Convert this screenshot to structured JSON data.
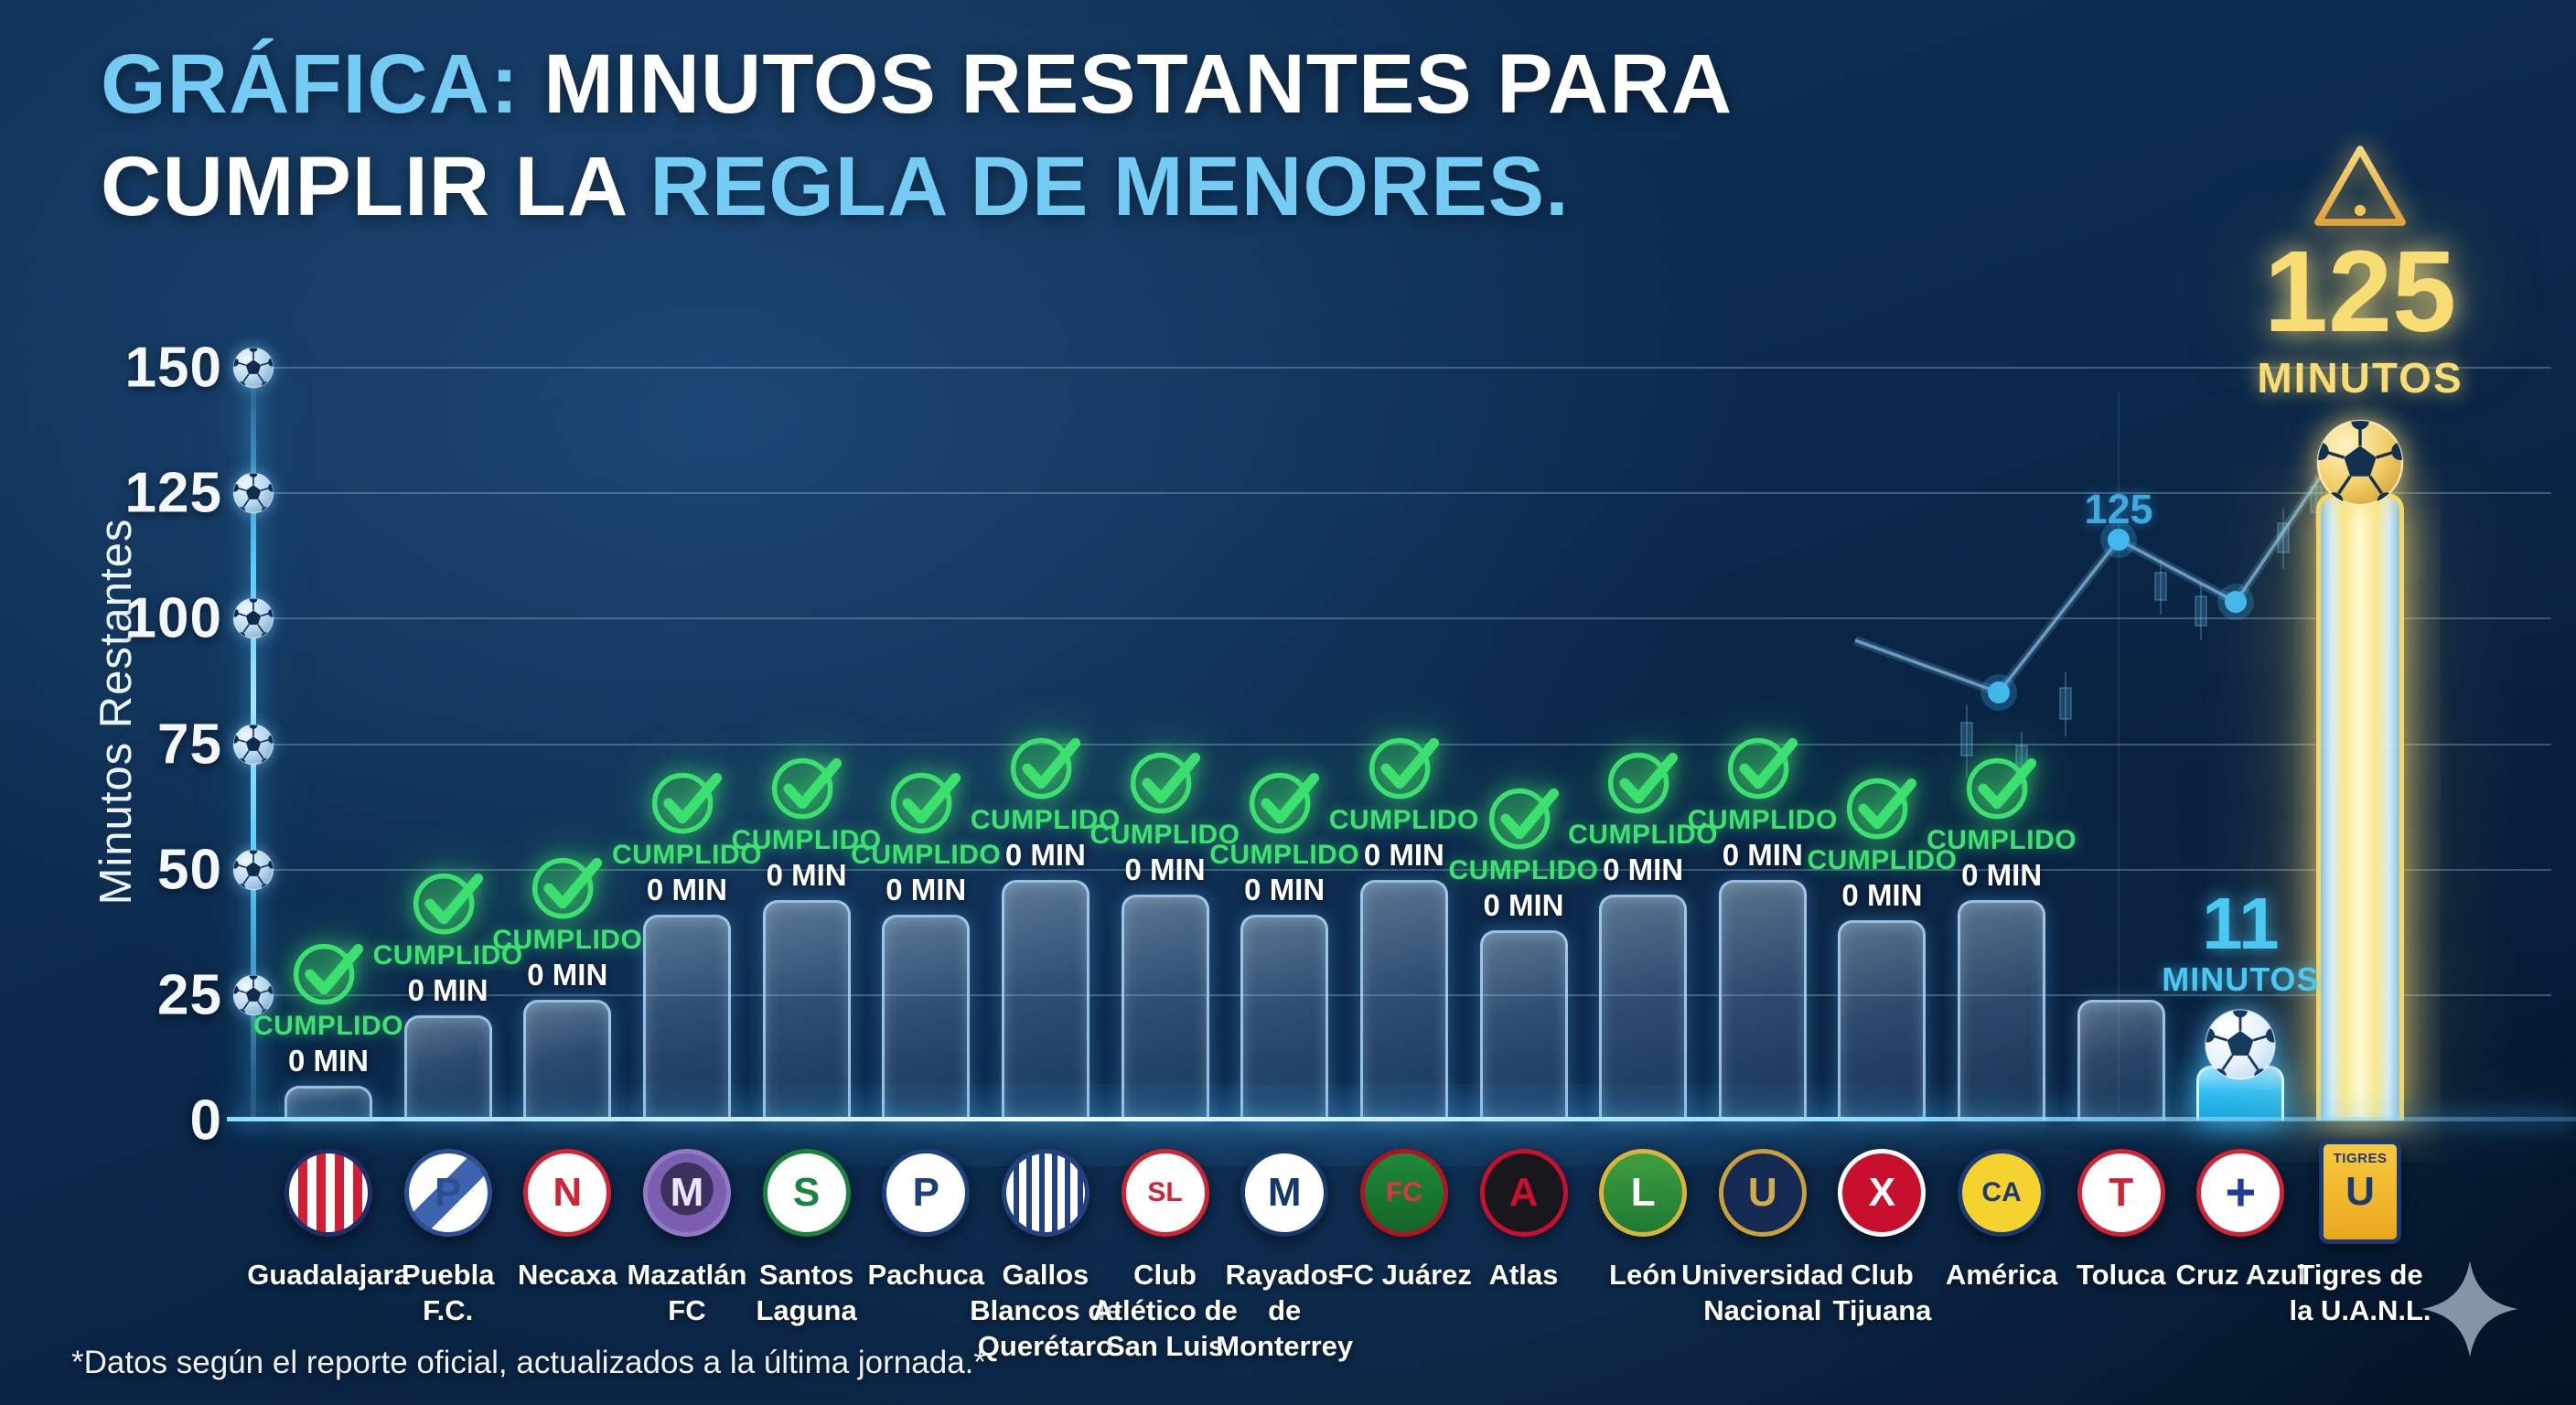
{
  "header": {
    "line1": [
      {
        "text": "GRÁFICA:",
        "accent": true
      },
      {
        "text": " MINUTOS RESTANTES PARA",
        "accent": false
      }
    ],
    "line2": [
      {
        "text": "CUMPLIR LA ",
        "accent": false
      },
      {
        "text": "REGLA DE MENORES.",
        "accent": true
      }
    ]
  },
  "alert": {
    "icon": "warning-triangle-icon",
    "value": "125",
    "unit": "MINUTOS"
  },
  "y_axis": {
    "title": "Minutos Restantes",
    "ticks": [
      150,
      125,
      100,
      75,
      50,
      25,
      0
    ]
  },
  "labels": {
    "cumplido": "CUMPLIDO",
    "zero_min": "0 MIN",
    "minutos": "MINUTOS"
  },
  "background_chart": {
    "peak_label": "125"
  },
  "footer": {
    "note": "*Datos según el reporte oficial, actualizados a la última jornada.*"
  },
  "icons": {
    "check": "check-circle-icon",
    "ball": "soccer-ball-icon",
    "warning": "warning-triangle-icon",
    "sparkle": "sparkle-icon"
  },
  "colors": {
    "accent_blue": "#74cbf4",
    "green": "#3ee06e",
    "cyan": "#4ac8f2",
    "gold": "#f8dc74",
    "background_navy": "#0b2a4d",
    "white": "#ffffff",
    "annotation_blue": "#3fa9e0"
  },
  "chart_data": {
    "type": "bar",
    "title": "GRÁFICA: MINUTOS RESTANTES PARA CUMPLIR LA REGLA DE MENORES.",
    "xlabel": "",
    "ylabel": "Minutos Restantes",
    "ylim": [
      0,
      150
    ],
    "yticks": [
      0,
      25,
      50,
      75,
      100,
      125,
      150
    ],
    "grid": true,
    "legend": false,
    "categories": [
      "Guadalajara",
      "Puebla F.C.",
      "Necaxa",
      "Mazatlán FC",
      "Santos Laguna",
      "Pachuca",
      "Gallos Blancos de Querétaro",
      "Club Atlético de San Luis",
      "Rayados de Monterrey",
      "FC Juárez",
      "Atlas",
      "León",
      "Universidad Nacional",
      "Club Tijuana",
      "América",
      "Toluca",
      "Cruz Azul",
      "Tigres de la U.A.N.L."
    ],
    "values": [
      0,
      0,
      0,
      0,
      0,
      0,
      0,
      0,
      0,
      0,
      0,
      0,
      0,
      0,
      0,
      null,
      11,
      125
    ],
    "value_labels": [
      "CUMPLIDO 0 MIN",
      "CUMPLIDO 0 MIN",
      "CUMPLIDO 0 MIN",
      "CUMPLIDO 0 MIN",
      "CUMPLIDO 0 MIN",
      "CUMPLIDO 0 MIN",
      "CUMPLIDO 0 MIN",
      "CUMPLIDO 0 MIN",
      "CUMPLIDO 0 MIN",
      "CUMPLIDO 0 MIN",
      "CUMPLIDO 0 MIN",
      "CUMPLIDO 0 MIN",
      "CUMPLIDO 0 MIN",
      "CUMPLIDO 0 MIN",
      "CUMPLIDO 0 MIN",
      "",
      "11 MINUTOS",
      "125 MINUTOS"
    ],
    "decorative_bar_heights_min": [
      7,
      21,
      24,
      41,
      44,
      41,
      48,
      45,
      41,
      48,
      38,
      45,
      48,
      40,
      44,
      24,
      11,
      125
    ],
    "background_trend_annotation": "125"
  },
  "teams": [
    {
      "id": "guadalajara",
      "label": "Guadalajara",
      "status": "cumplido",
      "stated_min": 0,
      "bar_min": 7,
      "logo": {
        "shape": "circle",
        "border": "#1d2f69",
        "bg": "repeating-linear-gradient(90deg,#ffffff 0px,#ffffff 10px,#cf1f34 10px,#cf1f34 20px)",
        "fg": "#1d2f69",
        "mono": ""
      }
    },
    {
      "id": "puebla",
      "label": "Puebla\nF.C.",
      "status": "cumplido",
      "stated_min": 0,
      "bar_min": 21,
      "logo": {
        "shape": "circle",
        "border": "#2c4f93",
        "bg": "linear-gradient(135deg,#ffffff 0%,#ffffff 40%,#3c63ae 40%,#3c63ae 62%,#ffffff 62%,#ffffff 100%)",
        "fg": "#2c4f93",
        "mono": "P"
      }
    },
    {
      "id": "necaxa",
      "label": "Necaxa",
      "status": "cumplido",
      "stated_min": 0,
      "bar_min": 24,
      "logo": {
        "shape": "circle",
        "border": "#d22234",
        "bg": "#ffffff",
        "fg": "#d22234",
        "mono": "N"
      }
    },
    {
      "id": "mazatlan",
      "label": "Mazatlán\nFC",
      "status": "cumplido",
      "stated_min": 0,
      "bar_min": 41,
      "logo": {
        "shape": "circle",
        "border": "#9279c2",
        "bg": "radial-gradient(circle at 50% 45%,#3d2f5e 0%,#3d2f5e 45%,#7a5fb0 45%,#7a5fb0 100%)",
        "fg": "#ece5f8",
        "mono": "M"
      }
    },
    {
      "id": "santos",
      "label": "Santos\nLaguna",
      "status": "cumplido",
      "stated_min": 0,
      "bar_min": 44,
      "logo": {
        "shape": "circle",
        "border": "#17833f",
        "bg": "#ffffff",
        "fg": "#17833f",
        "mono": "S"
      }
    },
    {
      "id": "pachuca",
      "label": "Pachuca",
      "status": "cumplido",
      "stated_min": 0,
      "bar_min": 41,
      "logo": {
        "shape": "circle",
        "border": "#1c3f7d",
        "bg": "#ffffff",
        "fg": "#1c3f7d",
        "mono": "P"
      }
    },
    {
      "id": "queretaro",
      "label": "Gallos\nBlancos de\nQuerétaro",
      "status": "cumplido",
      "stated_min": 0,
      "bar_min": 48,
      "logo": {
        "shape": "circle",
        "border": "#23407f",
        "bg": "repeating-linear-gradient(90deg,#ffffff 0px,#ffffff 8px,#23407f 8px,#23407f 14px)",
        "fg": "#0e2243",
        "mono": ""
      }
    },
    {
      "id": "san-luis",
      "label": "Club\nAtlético de\nSan Luis",
      "status": "cumplido",
      "stated_min": 0,
      "bar_min": 45,
      "logo": {
        "shape": "circle",
        "border": "#d02334",
        "bg": "#ffffff",
        "fg": "#d02334",
        "mono": "SL"
      }
    },
    {
      "id": "monterrey",
      "label": "Rayados\nde\nMonterrey",
      "status": "cumplido",
      "stated_min": 0,
      "bar_min": 41,
      "logo": {
        "shape": "circle",
        "border": "#16386b",
        "bg": "#ffffff",
        "fg": "#16386b",
        "mono": "M"
      }
    },
    {
      "id": "fc-juarez",
      "label": "FC Juárez",
      "status": "cumplido",
      "stated_min": 0,
      "bar_min": 48,
      "logo": {
        "shape": "circle",
        "border": "#b5121f",
        "bg": "linear-gradient(180deg,#1f8a3a 0%,#136628 100%)",
        "fg": "#e6313f",
        "mono": "FC"
      }
    },
    {
      "id": "atlas",
      "label": "Atlas",
      "status": "cumplido",
      "stated_min": 0,
      "bar_min": 38,
      "logo": {
        "shape": "circle",
        "border": "#c8102e",
        "bg": "#17171c",
        "fg": "#c8102e",
        "mono": "A"
      }
    },
    {
      "id": "leon",
      "label": "León",
      "status": "cumplido",
      "stated_min": 0,
      "bar_min": 45,
      "logo": {
        "shape": "circle",
        "border": "#d9b43a",
        "bg": "linear-gradient(180deg,#3f9e3f 0%,#1f7a33 100%)",
        "fg": "#ffffff",
        "mono": "L"
      }
    },
    {
      "id": "unam",
      "label": "Universidad\nNacional",
      "status": "cumplido",
      "stated_min": 0,
      "bar_min": 48,
      "logo": {
        "shape": "circle",
        "border": "#c9a03c",
        "bg": "#142a52",
        "fg": "#d4ab4a",
        "mono": "U"
      }
    },
    {
      "id": "tijuana",
      "label": "Club\nTijuana",
      "status": "cumplido",
      "stated_min": 0,
      "bar_min": 40,
      "logo": {
        "shape": "circle",
        "border": "#ffffff",
        "bg": "#c8102e",
        "fg": "#ffffff",
        "mono": "X"
      }
    },
    {
      "id": "america",
      "label": "América",
      "status": "cumplido",
      "stated_min": 0,
      "bar_min": 44,
      "logo": {
        "shape": "circle",
        "border": "#1c3a72",
        "bg": "#f6d22e",
        "fg": "#1c3a72",
        "mono": "CA"
      }
    },
    {
      "id": "toluca",
      "label": "Toluca",
      "status": "none",
      "stated_min": null,
      "bar_min": 24,
      "logo": {
        "shape": "circle",
        "border": "#d02334",
        "bg": "#ffffff",
        "fg": "#d02334",
        "mono": "T"
      }
    },
    {
      "id": "cruz-azul",
      "label": "Cruz Azul",
      "status": "minutos-cyan",
      "value": "11",
      "stated_min": 11,
      "bar_min": 11,
      "logo": {
        "shape": "circle",
        "border": "#d02334",
        "bg": "#ffffff",
        "fg": "#1e3f93",
        "mono": "+"
      }
    },
    {
      "id": "tigres",
      "label": "Tigres de\nla U.A.N.L.",
      "status": "minutos-gold",
      "value": "125",
      "stated_min": 125,
      "bar_min": 125,
      "logo": {
        "shape": "rect",
        "border": "#1c3a72",
        "bg": "linear-gradient(180deg,#f7c93f 0%,#eaa81f 100%)",
        "fg": "#1c3a72",
        "mono": "U",
        "top": "TIGRES"
      }
    }
  ]
}
